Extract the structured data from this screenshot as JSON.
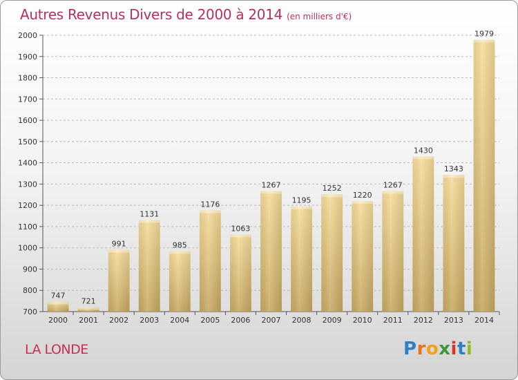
{
  "chart_data": {
    "type": "bar",
    "title": "Autres Revenus Divers de 2000 à 2014",
    "subtitle": "(en milliers d'€)",
    "xlabel": "",
    "ylabel": "",
    "categories": [
      "2000",
      "2001",
      "2002",
      "2003",
      "2004",
      "2005",
      "2006",
      "2007",
      "2008",
      "2009",
      "2010",
      "2011",
      "2012",
      "2013",
      "2014"
    ],
    "values": [
      747,
      721,
      991,
      1131,
      985,
      1176,
      1063,
      1267,
      1195,
      1252,
      1220,
      1267,
      1430,
      1343,
      1979
    ],
    "data_labels": [
      "747",
      "721",
      "991",
      "1131",
      "985",
      "1176",
      "1063",
      "1267",
      "1195",
      "1252",
      "1220",
      "1267",
      "1430",
      "1343",
      "1979"
    ],
    "ylim": [
      700,
      2000
    ],
    "yticks": [
      700,
      800,
      900,
      1000,
      1100,
      1200,
      1300,
      1400,
      1500,
      1600,
      1700,
      1800,
      1900,
      2000
    ],
    "grid": "horizontal dashed",
    "legend": "none",
    "colors": {
      "bar_light": "#f6dc9a",
      "bar_dark": "#c7a861",
      "title": "#b5305a",
      "place": "#c8304f"
    }
  },
  "footer": {
    "place_name": "LA LONDE"
  },
  "logo": {
    "letters": [
      "P",
      "r",
      "o",
      "x",
      "i",
      "t",
      "i"
    ],
    "colors": [
      "#2f7fc4",
      "#e8731f",
      "#f2a11b",
      "#3a9a3a",
      "#d8342a",
      "#2f7fc4",
      "#8dbb2b"
    ]
  }
}
